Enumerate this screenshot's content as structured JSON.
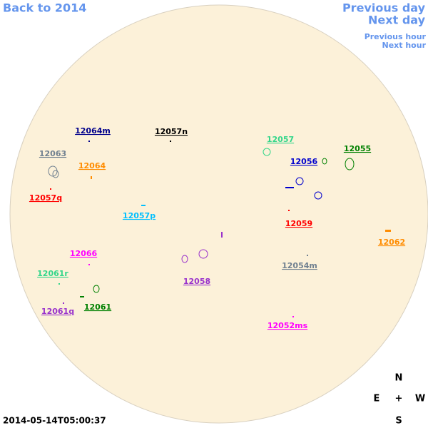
{
  "nav": {
    "back": "Back to 2014",
    "previous_day": "Previous day",
    "next_day": "Next day",
    "previous_hour": "Previous hour",
    "next_hour": "Next hour"
  },
  "timestamp": "2014-05-14T05:00:37",
  "compass": {
    "north": "N",
    "east": "E",
    "center": "+",
    "west": "W",
    "south": "S"
  },
  "regions": [
    {
      "label": "12064m",
      "color": "#00008b"
    },
    {
      "label": "12057n",
      "color": "#000000"
    },
    {
      "label": "12063",
      "color": "#708090"
    },
    {
      "label": "12064",
      "color": "#ff8c00"
    },
    {
      "label": "12057q",
      "color": "#ff0000"
    },
    {
      "label": "12057p",
      "color": "#00bfff"
    },
    {
      "label": "12057",
      "color": "#33d68a"
    },
    {
      "label": "12056",
      "color": "#0000cd"
    },
    {
      "label": "12055",
      "color": "#008000"
    },
    {
      "label": "12059",
      "color": "#ff0000"
    },
    {
      "label": "12062",
      "color": "#ff8c00"
    },
    {
      "label": "12066",
      "color": "#ff00ff"
    },
    {
      "label": "12061r",
      "color": "#33d68a"
    },
    {
      "label": "12058",
      "color": "#9932cc"
    },
    {
      "label": "12054m",
      "color": "#708090"
    },
    {
      "label": "12061",
      "color": "#008000"
    },
    {
      "label": "12061q",
      "color": "#9932cc"
    },
    {
      "label": "12052ms",
      "color": "#ff00ff"
    }
  ]
}
